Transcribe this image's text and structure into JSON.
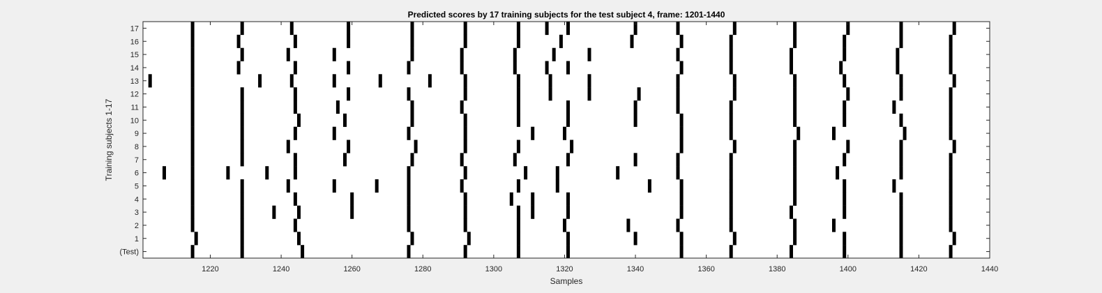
{
  "chart_data": {
    "type": "raster",
    "title": "Predicted scores by 17 training subjects for the test subject 4, frame: 1201-1440",
    "xlabel": "Samples",
    "ylabel": "Training subjects 1-17",
    "xlim": [
      1201,
      1440
    ],
    "xticks": [
      1220,
      1240,
      1260,
      1280,
      1300,
      1320,
      1340,
      1360,
      1380,
      1400,
      1420,
      1440
    ],
    "xtick_labels": [
      "1220",
      "1240",
      "1260",
      "1280",
      "1300",
      "1320",
      "1340",
      "1360",
      "1380",
      "1400",
      "1420",
      "1440"
    ],
    "row_labels": [
      "(Test)",
      "1",
      "2",
      "3",
      "4",
      "5",
      "6",
      "7",
      "8",
      "9",
      "10",
      "11",
      "12",
      "13",
      "14",
      "15",
      "16",
      "17"
    ],
    "grid": false,
    "rows": [
      {
        "label": "(Test)",
        "events": [
          1215,
          1229,
          1246,
          1276,
          1292,
          1307,
          1321,
          1353,
          1367,
          1384,
          1399,
          1415,
          1429
        ]
      },
      {
        "label": "1",
        "events": [
          1216,
          1229,
          1245,
          1277,
          1293,
          1307,
          1321,
          1340,
          1353,
          1368,
          1385,
          1399,
          1415,
          1430
        ]
      },
      {
        "label": "2",
        "events": [
          1215,
          1229,
          1244,
          1276,
          1292,
          1307,
          1320,
          1338,
          1352,
          1367,
          1385,
          1396,
          1415,
          1429
        ]
      },
      {
        "label": "3",
        "events": [
          1215,
          1229,
          1238,
          1245,
          1260,
          1276,
          1292,
          1307,
          1311,
          1321,
          1353,
          1367,
          1384,
          1399,
          1415,
          1429
        ]
      },
      {
        "label": "4",
        "events": [
          1215,
          1229,
          1244,
          1260,
          1276,
          1292,
          1305,
          1311,
          1321,
          1353,
          1367,
          1385,
          1399,
          1415,
          1429
        ]
      },
      {
        "label": "5",
        "events": [
          1215,
          1229,
          1242,
          1255,
          1267,
          1276,
          1291,
          1307,
          1318,
          1344,
          1353,
          1367,
          1385,
          1399,
          1413,
          1429
        ]
      },
      {
        "label": "6",
        "events": [
          1207,
          1215,
          1225,
          1236,
          1244,
          1276,
          1292,
          1309,
          1318,
          1335,
          1352,
          1367,
          1385,
          1397,
          1415,
          1429
        ]
      },
      {
        "label": "7",
        "events": [
          1215,
          1229,
          1244,
          1258,
          1277,
          1291,
          1306,
          1321,
          1340,
          1352,
          1367,
          1385,
          1399,
          1415,
          1429
        ]
      },
      {
        "label": "8",
        "events": [
          1215,
          1229,
          1242,
          1259,
          1278,
          1292,
          1307,
          1322,
          1353,
          1368,
          1385,
          1400,
          1415,
          1430
        ]
      },
      {
        "label": "9",
        "events": [
          1215,
          1229,
          1244,
          1255,
          1276,
          1292,
          1311,
          1320,
          1353,
          1367,
          1386,
          1396,
          1416,
          1429
        ]
      },
      {
        "label": "10",
        "events": [
          1215,
          1229,
          1245,
          1258,
          1277,
          1292,
          1307,
          1321,
          1340,
          1353,
          1367,
          1385,
          1399,
          1415,
          1429
        ]
      },
      {
        "label": "11",
        "events": [
          1215,
          1229,
          1244,
          1256,
          1277,
          1291,
          1307,
          1321,
          1340,
          1352,
          1367,
          1385,
          1399,
          1413,
          1429
        ]
      },
      {
        "label": "12",
        "events": [
          1215,
          1229,
          1244,
          1259,
          1276,
          1292,
          1307,
          1316,
          1327,
          1341,
          1352,
          1368,
          1385,
          1400,
          1415,
          1429
        ]
      },
      {
        "label": "13",
        "events": [
          1203,
          1215,
          1234,
          1243,
          1255,
          1268,
          1282,
          1292,
          1307,
          1316,
          1327,
          1352,
          1368,
          1385,
          1399,
          1415,
          1430
        ]
      },
      {
        "label": "14",
        "events": [
          1215,
          1228,
          1244,
          1259,
          1276,
          1291,
          1306,
          1315,
          1321,
          1353,
          1367,
          1384,
          1398,
          1414,
          1429
        ]
      },
      {
        "label": "15",
        "events": [
          1215,
          1229,
          1242,
          1255,
          1277,
          1291,
          1306,
          1317,
          1327,
          1352,
          1367,
          1384,
          1399,
          1414,
          1429
        ]
      },
      {
        "label": "16",
        "events": [
          1215,
          1228,
          1244,
          1259,
          1277,
          1292,
          1307,
          1319,
          1339,
          1353,
          1367,
          1385,
          1399,
          1415,
          1429
        ]
      },
      {
        "label": "17",
        "events": [
          1215,
          1229,
          1243,
          1259,
          1277,
          1292,
          1307,
          1315,
          1321,
          1340,
          1352,
          1368,
          1385,
          1400,
          1415,
          1430
        ]
      }
    ]
  }
}
